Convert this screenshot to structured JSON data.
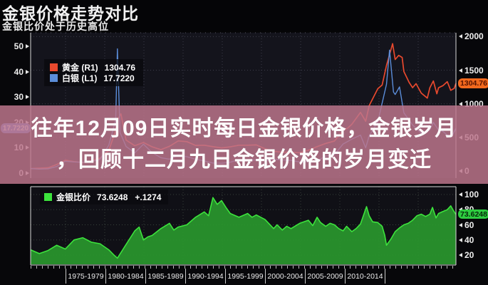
{
  "header": {
    "title": "金银价格走势对比",
    "subtitle": "金银比价处于历史高位"
  },
  "banner": {
    "line1": "往年12月09日实时每日金银价格，金银岁月",
    "line2": "，回顾十二月九日金银价格的岁月变迁"
  },
  "colors": {
    "gold_line": "#e8492e",
    "silver_line": "#5b8dd9",
    "ratio_line": "#3ce33c",
    "ratio_fill": "#2a9a2e",
    "gold_badge_bg": "#f2691e",
    "silver_badge_bg": "#5b7fd0",
    "ratio_badge_bg": "#2ecc40",
    "banner_bg": "#be768d",
    "plot_bg": "#14141c"
  },
  "chart_data": [
    {
      "type": "line",
      "title": "金银价格走势对比",
      "subtitle": "金银比价处于历史高位",
      "x_range": [
        1970,
        2019
      ],
      "grid": true,
      "legend_position": "top-left",
      "left_axis": {
        "ticks": [
          50,
          40,
          30,
          20,
          10,
          0
        ],
        "lim": [
          0,
          55
        ]
      },
      "right_axis": {
        "ticks": [
          2000,
          1500,
          1000,
          500,
          0
        ],
        "lim": [
          0,
          2100
        ]
      },
      "series": [
        {
          "name": "黄金 (R1)",
          "axis": "right",
          "color": "#e8492e",
          "current": "1304.76",
          "points": [
            [
              1970,
              36
            ],
            [
              1971,
              41
            ],
            [
              1972,
              48
            ],
            [
              1973,
              97
            ],
            [
              1974,
              160
            ],
            [
              1975,
              140
            ],
            [
              1976,
              125
            ],
            [
              1977,
              148
            ],
            [
              1978,
              193
            ],
            [
              1979,
              307
            ],
            [
              1979.8,
              600
            ],
            [
              1980,
              760
            ],
            [
              1980.4,
              850
            ],
            [
              1981,
              460
            ],
            [
              1982,
              376
            ],
            [
              1983,
              424
            ],
            [
              1984,
              360
            ],
            [
              1985,
              317
            ],
            [
              1986,
              368
            ],
            [
              1987,
              447
            ],
            [
              1988,
              437
            ],
            [
              1989,
              381
            ],
            [
              1990,
              384
            ],
            [
              1991,
              362
            ],
            [
              1992,
              344
            ],
            [
              1993,
              360
            ],
            [
              1994,
              384
            ],
            [
              1995,
              384
            ],
            [
              1996,
              388
            ],
            [
              1997,
              331
            ],
            [
              1998,
              294
            ],
            [
              1999,
              279
            ],
            [
              2000,
              279
            ],
            [
              2001,
              271
            ],
            [
              2002,
              310
            ],
            [
              2003,
              363
            ],
            [
              2004,
              410
            ],
            [
              2005,
              445
            ],
            [
              2006,
              603
            ],
            [
              2006.5,
              636
            ],
            [
              2007,
              695
            ],
            [
              2008,
              872
            ],
            [
              2008.6,
              740
            ],
            [
              2009,
              972
            ],
            [
              2010,
              1225
            ],
            [
              2010.5,
              1280
            ],
            [
              2011,
              1570
            ],
            [
              2011.7,
              1895
            ],
            [
              2012,
              1660
            ],
            [
              2012.4,
              1720
            ],
            [
              2012.8,
              1690
            ],
            [
              2013,
              1480
            ],
            [
              2013.3,
              1400
            ],
            [
              2013.6,
              1320
            ],
            [
              2014,
              1240
            ],
            [
              2014.4,
              1300
            ],
            [
              2015,
              1160
            ],
            [
              2015.7,
              1085
            ],
            [
              2016,
              1240
            ],
            [
              2016.4,
              1340
            ],
            [
              2016.8,
              1150
            ],
            [
              2017,
              1240
            ],
            [
              2017.5,
              1270
            ],
            [
              2018,
              1330
            ],
            [
              2018.4,
              1200
            ],
            [
              2018.8,
              1230
            ],
            [
              2019,
              1304.76
            ]
          ]
        },
        {
          "name": "白银 (L1)",
          "axis": "left",
          "color": "#5b8dd9",
          "current": "17.7220",
          "points": [
            [
              1970,
              1.8
            ],
            [
              1971,
              1.6
            ],
            [
              1972,
              1.7
            ],
            [
              1973,
              2.6
            ],
            [
              1974,
              4.7
            ],
            [
              1975,
              4.4
            ],
            [
              1976,
              4.3
            ],
            [
              1977,
              4.6
            ],
            [
              1978,
              5.4
            ],
            [
              1979,
              11
            ],
            [
              1979.8,
              21
            ],
            [
              1980,
              49
            ],
            [
              1980.3,
              16
            ],
            [
              1981,
              10.5
            ],
            [
              1982,
              8
            ],
            [
              1983,
              11.4
            ],
            [
              1984,
              8.1
            ],
            [
              1985,
              6.1
            ],
            [
              1986,
              5.5
            ],
            [
              1987,
              7
            ],
            [
              1988,
              6.5
            ],
            [
              1989,
              5.5
            ],
            [
              1990,
              4.8
            ],
            [
              1991,
              4
            ],
            [
              1992,
              3.9
            ],
            [
              1993,
              4.3
            ],
            [
              1994,
              5.3
            ],
            [
              1995,
              5.2
            ],
            [
              1996,
              5.2
            ],
            [
              1997,
              4.9
            ],
            [
              1998,
              5.5
            ],
            [
              1999,
              5.2
            ],
            [
              2000,
              5
            ],
            [
              2001,
              4.4
            ],
            [
              2002,
              4.6
            ],
            [
              2003,
              4.9
            ],
            [
              2004,
              6.7
            ],
            [
              2005,
              7.3
            ],
            [
              2006,
              11.5
            ],
            [
              2007,
              13.4
            ],
            [
              2008,
              15
            ],
            [
              2008.6,
              10
            ],
            [
              2009,
              14.7
            ],
            [
              2010,
              20.2
            ],
            [
              2011,
              35
            ],
            [
              2011.35,
              48.5
            ],
            [
              2011.8,
              32
            ],
            [
              2012,
              31
            ],
            [
              2012.5,
              34
            ],
            [
              2013,
              23.8
            ],
            [
              2014,
              19
            ],
            [
              2015,
              15.7
            ],
            [
              2016,
              17.1
            ],
            [
              2016.4,
              20
            ],
            [
              2017,
              17
            ],
            [
              2017.5,
              16.5
            ],
            [
              2018,
              15
            ],
            [
              2018.5,
              14.3
            ],
            [
              2019,
              17.722
            ]
          ]
        }
      ]
    },
    {
      "type": "area",
      "x_range": [
        1970,
        2019
      ],
      "grid": true,
      "right_axis": {
        "ticks": [
          100,
          80,
          60,
          40,
          20
        ],
        "lim": [
          5,
          105
        ]
      },
      "x_tick_labels": [
        "1975-1979",
        "1980-1984",
        "1985-1989",
        "1990-1994",
        "1995-1999",
        "2000-2004",
        "2005-2009",
        "2010-2014"
      ],
      "series": [
        {
          "name": "金银比价",
          "color": "#3ce33c",
          "fill": "#2a9a2e",
          "current": "73.6248",
          "change": "+.1274",
          "points": [
            [
              1970,
              27
            ],
            [
              1971,
              22
            ],
            [
              1972,
              26
            ],
            [
              1973,
              33
            ],
            [
              1974,
              28
            ],
            [
              1975,
              40
            ],
            [
              1976,
              43
            ],
            [
              1977,
              37
            ],
            [
              1978,
              35
            ],
            [
              1979,
              27
            ],
            [
              1979.6,
              20
            ],
            [
              1980,
              16
            ],
            [
              1980.5,
              25
            ],
            [
              1981,
              34
            ],
            [
              1982,
              52
            ],
            [
              1982.5,
              57
            ],
            [
              1983,
              40
            ],
            [
              1983.5,
              44
            ],
            [
              1984,
              46
            ],
            [
              1985,
              55
            ],
            [
              1986,
              62
            ],
            [
              1986.5,
              53
            ],
            [
              1987,
              57
            ],
            [
              1988,
              60
            ],
            [
              1989,
              70
            ],
            [
              1990,
              77
            ],
            [
              1990.5,
              72
            ],
            [
              1991,
              96
            ],
            [
              1991.5,
              87
            ],
            [
              1992,
              92
            ],
            [
              1992.5,
              83
            ],
            [
              1993,
              75
            ],
            [
              1994,
              70
            ],
            [
              1995,
              75
            ],
            [
              1995.5,
              70
            ],
            [
              1996,
              73
            ],
            [
              1997,
              67
            ],
            [
              1998,
              55
            ],
            [
              1998.4,
              60
            ],
            [
              1999,
              53
            ],
            [
              1999.5,
              58
            ],
            [
              2000,
              55
            ],
            [
              2001,
              62
            ],
            [
              2002,
              66
            ],
            [
              2002.5,
              59
            ],
            [
              2003,
              70
            ],
            [
              2003.4,
              63
            ],
            [
              2004,
              58
            ],
            [
              2004.5,
              62
            ],
            [
              2005,
              60
            ],
            [
              2005.5,
              55
            ],
            [
              2006,
              52
            ],
            [
              2006.4,
              58
            ],
            [
              2007,
              51
            ],
            [
              2007.5,
              55
            ],
            [
              2008,
              61
            ],
            [
              2008.7,
              84
            ],
            [
              2009,
              72
            ],
            [
              2009.4,
              64
            ],
            [
              2010,
              63
            ],
            [
              2010.5,
              58
            ],
            [
              2010.8,
              46
            ],
            [
              2011,
              33
            ],
            [
              2011.5,
              41
            ],
            [
              2012,
              51
            ],
            [
              2012.5,
              56
            ],
            [
              2013,
              60
            ],
            [
              2013.5,
              62
            ],
            [
              2014,
              66
            ],
            [
              2014.5,
              72
            ],
            [
              2015,
              74
            ],
            [
              2015.5,
              71
            ],
            [
              2016,
              74
            ],
            [
              2016.3,
              83
            ],
            [
              2016.7,
              69
            ],
            [
              2017,
              75
            ],
            [
              2017.4,
              77
            ],
            [
              2018,
              80
            ],
            [
              2018.4,
              85
            ],
            [
              2018.7,
              79
            ],
            [
              2019,
              73.6248
            ]
          ]
        }
      ]
    }
  ]
}
